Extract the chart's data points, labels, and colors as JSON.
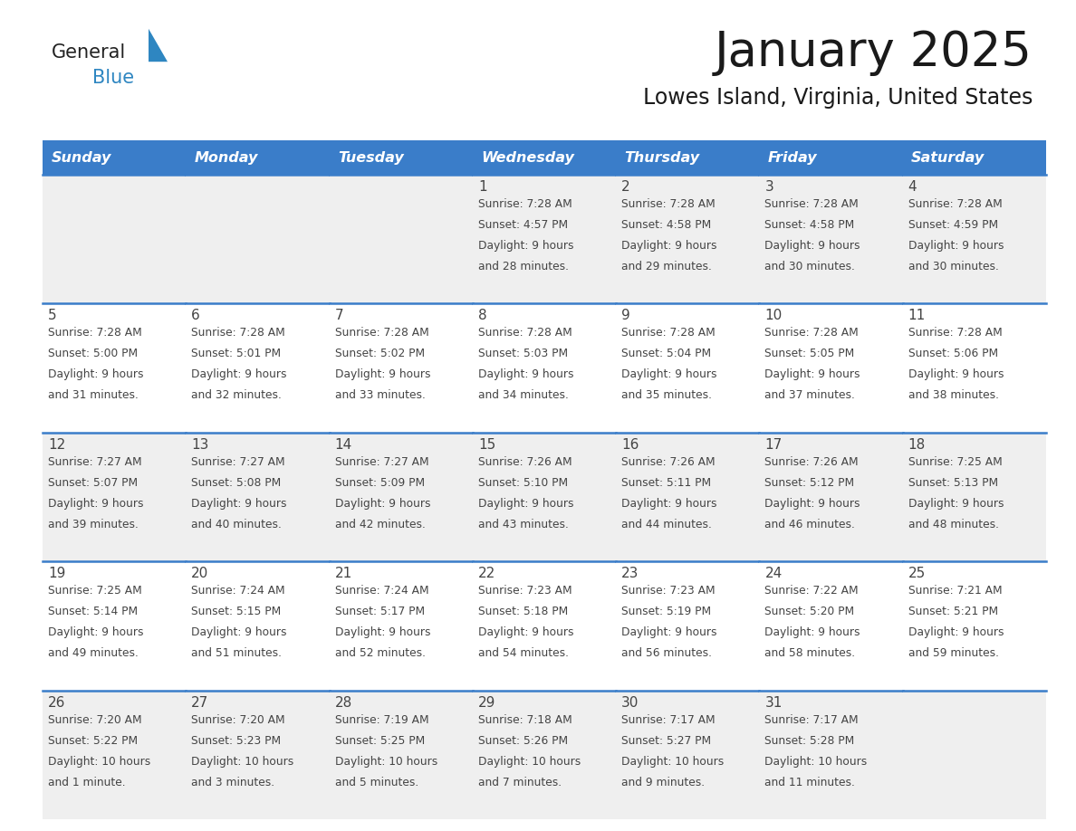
{
  "title": "January 2025",
  "subtitle": "Lowes Island, Virginia, United States",
  "days_of_week": [
    "Sunday",
    "Monday",
    "Tuesday",
    "Wednesday",
    "Thursday",
    "Friday",
    "Saturday"
  ],
  "header_bg": "#3A7DC9",
  "header_text_color": "#FFFFFF",
  "cell_bg_light": "#EFEFEF",
  "cell_bg_white": "#FFFFFF",
  "separator_color": "#3A7DC9",
  "text_color": "#444444",
  "title_color": "#1a1a1a",
  "logo_general_color": "#222222",
  "logo_blue_color": "#2E86C1",
  "logo_triangle_color": "#2E86C1",
  "calendar_data": [
    [
      {
        "day": null,
        "sunrise": null,
        "sunset": null,
        "daylight": null
      },
      {
        "day": null,
        "sunrise": null,
        "sunset": null,
        "daylight": null
      },
      {
        "day": null,
        "sunrise": null,
        "sunset": null,
        "daylight": null
      },
      {
        "day": 1,
        "sunrise": "7:28 AM",
        "sunset": "4:57 PM",
        "daylight": "9 hours\nand 28 minutes."
      },
      {
        "day": 2,
        "sunrise": "7:28 AM",
        "sunset": "4:58 PM",
        "daylight": "9 hours\nand 29 minutes."
      },
      {
        "day": 3,
        "sunrise": "7:28 AM",
        "sunset": "4:58 PM",
        "daylight": "9 hours\nand 30 minutes."
      },
      {
        "day": 4,
        "sunrise": "7:28 AM",
        "sunset": "4:59 PM",
        "daylight": "9 hours\nand 30 minutes."
      }
    ],
    [
      {
        "day": 5,
        "sunrise": "7:28 AM",
        "sunset": "5:00 PM",
        "daylight": "9 hours\nand 31 minutes."
      },
      {
        "day": 6,
        "sunrise": "7:28 AM",
        "sunset": "5:01 PM",
        "daylight": "9 hours\nand 32 minutes."
      },
      {
        "day": 7,
        "sunrise": "7:28 AM",
        "sunset": "5:02 PM",
        "daylight": "9 hours\nand 33 minutes."
      },
      {
        "day": 8,
        "sunrise": "7:28 AM",
        "sunset": "5:03 PM",
        "daylight": "9 hours\nand 34 minutes."
      },
      {
        "day": 9,
        "sunrise": "7:28 AM",
        "sunset": "5:04 PM",
        "daylight": "9 hours\nand 35 minutes."
      },
      {
        "day": 10,
        "sunrise": "7:28 AM",
        "sunset": "5:05 PM",
        "daylight": "9 hours\nand 37 minutes."
      },
      {
        "day": 11,
        "sunrise": "7:28 AM",
        "sunset": "5:06 PM",
        "daylight": "9 hours\nand 38 minutes."
      }
    ],
    [
      {
        "day": 12,
        "sunrise": "7:27 AM",
        "sunset": "5:07 PM",
        "daylight": "9 hours\nand 39 minutes."
      },
      {
        "day": 13,
        "sunrise": "7:27 AM",
        "sunset": "5:08 PM",
        "daylight": "9 hours\nand 40 minutes."
      },
      {
        "day": 14,
        "sunrise": "7:27 AM",
        "sunset": "5:09 PM",
        "daylight": "9 hours\nand 42 minutes."
      },
      {
        "day": 15,
        "sunrise": "7:26 AM",
        "sunset": "5:10 PM",
        "daylight": "9 hours\nand 43 minutes."
      },
      {
        "day": 16,
        "sunrise": "7:26 AM",
        "sunset": "5:11 PM",
        "daylight": "9 hours\nand 44 minutes."
      },
      {
        "day": 17,
        "sunrise": "7:26 AM",
        "sunset": "5:12 PM",
        "daylight": "9 hours\nand 46 minutes."
      },
      {
        "day": 18,
        "sunrise": "7:25 AM",
        "sunset": "5:13 PM",
        "daylight": "9 hours\nand 48 minutes."
      }
    ],
    [
      {
        "day": 19,
        "sunrise": "7:25 AM",
        "sunset": "5:14 PM",
        "daylight": "9 hours\nand 49 minutes."
      },
      {
        "day": 20,
        "sunrise": "7:24 AM",
        "sunset": "5:15 PM",
        "daylight": "9 hours\nand 51 minutes."
      },
      {
        "day": 21,
        "sunrise": "7:24 AM",
        "sunset": "5:17 PM",
        "daylight": "9 hours\nand 52 minutes."
      },
      {
        "day": 22,
        "sunrise": "7:23 AM",
        "sunset": "5:18 PM",
        "daylight": "9 hours\nand 54 minutes."
      },
      {
        "day": 23,
        "sunrise": "7:23 AM",
        "sunset": "5:19 PM",
        "daylight": "9 hours\nand 56 minutes."
      },
      {
        "day": 24,
        "sunrise": "7:22 AM",
        "sunset": "5:20 PM",
        "daylight": "9 hours\nand 58 minutes."
      },
      {
        "day": 25,
        "sunrise": "7:21 AM",
        "sunset": "5:21 PM",
        "daylight": "9 hours\nand 59 minutes."
      }
    ],
    [
      {
        "day": 26,
        "sunrise": "7:20 AM",
        "sunset": "5:22 PM",
        "daylight": "10 hours\nand 1 minute."
      },
      {
        "day": 27,
        "sunrise": "7:20 AM",
        "sunset": "5:23 PM",
        "daylight": "10 hours\nand 3 minutes."
      },
      {
        "day": 28,
        "sunrise": "7:19 AM",
        "sunset": "5:25 PM",
        "daylight": "10 hours\nand 5 minutes."
      },
      {
        "day": 29,
        "sunrise": "7:18 AM",
        "sunset": "5:26 PM",
        "daylight": "10 hours\nand 7 minutes."
      },
      {
        "day": 30,
        "sunrise": "7:17 AM",
        "sunset": "5:27 PM",
        "daylight": "10 hours\nand 9 minutes."
      },
      {
        "day": 31,
        "sunrise": "7:17 AM",
        "sunset": "5:28 PM",
        "daylight": "10 hours\nand 11 minutes."
      },
      {
        "day": null,
        "sunrise": null,
        "sunset": null,
        "daylight": null
      }
    ]
  ]
}
